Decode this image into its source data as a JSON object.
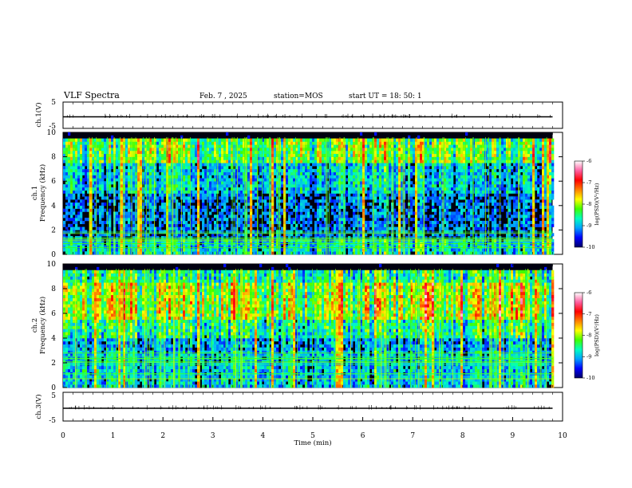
{
  "header": {
    "title": "VLF Spectra",
    "date": "Feb. 7 , 2025",
    "station": "station=MOS",
    "start_ut": "start UT =   18: 50: 1"
  },
  "x_axis": {
    "label": "Time (min)",
    "range": [
      0,
      10
    ],
    "ticks": [
      "0",
      "1",
      "2",
      "3",
      "4",
      "5",
      "6",
      "7",
      "8",
      "9",
      "10"
    ]
  },
  "panels": {
    "ch1_waveform": {
      "ylabel": "ch.1(V)",
      "ticks": [
        "5",
        "-5"
      ],
      "range": [
        -5,
        5
      ],
      "level": 0
    },
    "ch1_spectrogram": {
      "ylabel_line1": "ch.1",
      "ylabel_line2": "Frequency (kHz)",
      "ticks": [
        "0",
        "2",
        "4",
        "6",
        "8",
        "10"
      ],
      "range": [
        0,
        10
      ]
    },
    "ch2_spectrogram": {
      "ylabel_line1": "ch.2",
      "ylabel_line2": "Frequency (kHz)",
      "ticks": [
        "0",
        "2",
        "4",
        "6",
        "8",
        "10"
      ],
      "range": [
        0,
        10
      ]
    },
    "ch3_waveform": {
      "ylabel": "ch.3(V)",
      "ticks": [
        "5",
        "-5"
      ],
      "range": [
        -5,
        5
      ],
      "level": 0
    }
  },
  "colorbar": {
    "label": "log(PSD)(V²/Hz)",
    "ticks": [
      "-6",
      "-7",
      "-8",
      "-9",
      "-10"
    ],
    "range": [
      -10,
      -6
    ],
    "colors": [
      "#000066",
      "#0000ff",
      "#00a0ff",
      "#00ffc0",
      "#40ff00",
      "#ffff00",
      "#ff8000",
      "#ff0000",
      "#ff60a0",
      "#ffffff"
    ]
  },
  "chart_data": [
    {
      "type": "line",
      "title": "",
      "ylabel": "ch.1(V)",
      "xlim": [
        0,
        10
      ],
      "ylim": [
        -5,
        5
      ],
      "x": [
        0,
        9.8
      ],
      "values": [
        0,
        0
      ]
    },
    {
      "type": "heatmap",
      "ylabel": "ch.1 Frequency (kHz)",
      "xlim": [
        0,
        10
      ],
      "ylim": [
        0,
        10
      ],
      "colorbar_range": [
        -10,
        -6
      ],
      "notes_visible": "data extends to about 9.8 min; strongest emission 8–9.5 kHz; persistent narrowband lines below 2 kHz"
    },
    {
      "type": "heatmap",
      "ylabel": "ch.2 Frequency (kHz)",
      "xlim": [
        0,
        10
      ],
      "ylim": [
        0,
        10
      ],
      "colorbar_range": [
        -10,
        -6
      ],
      "notes_visible": "broadband emission 5–9.5 kHz with intense patches near 6–8 kHz; narrowband lines below 3 kHz"
    },
    {
      "type": "line",
      "title": "",
      "ylabel": "ch.3(V)",
      "xlim": [
        0,
        10
      ],
      "ylim": [
        -5,
        5
      ],
      "x": [
        0,
        9.8
      ],
      "values": [
        0,
        0
      ]
    }
  ]
}
